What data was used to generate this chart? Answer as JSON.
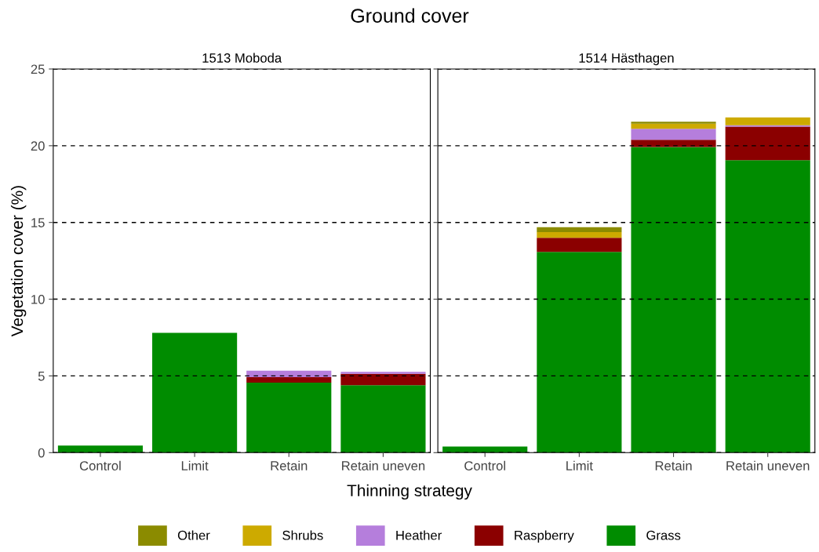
{
  "chart_data": [
    {
      "type": "bar",
      "title": "1513 Moboda",
      "annotations": [
        "Ground cover"
      ],
      "xlabel": "Thinning strategy",
      "ylabel": "Vegetation cover (%)",
      "stacked": true,
      "grid": "y",
      "categories": [
        "Control",
        "Limit",
        "Retain",
        "Retain uneven"
      ],
      "ylim": [
        0,
        25
      ],
      "yticks": [
        0,
        5,
        10,
        15,
        20,
        25
      ],
      "series": [
        {
          "color": "#008c00",
          "values": [
            0.46,
            7.8,
            4.56,
            4.4
          ]
        },
        {
          "color": "#8b0000",
          "values": [
            0,
            0,
            0.36,
            0.74
          ]
        },
        {
          "color": "#b57edc",
          "values": [
            0,
            0,
            0.42,
            0.13
          ]
        },
        {
          "color": "#cdaa00",
          "values": [
            0,
            0,
            0,
            0
          ]
        },
        {
          "color": "#8b8b00",
          "values": [
            0,
            0,
            0,
            0
          ]
        }
      ]
    },
    {
      "type": "bar",
      "title": "1514 Hästhagen",
      "stacked": true,
      "grid": "y",
      "tick_labels": "x",
      "legend": "bottom",
      "categories": [
        "Control",
        "Limit",
        "Retain",
        "Retain uneven"
      ],
      "ylim": [
        0,
        25
      ],
      "yticks": [
        0,
        5,
        10,
        15,
        20,
        25
      ],
      "series": [
        {
          "name": "Grass",
          "color": "#008c00",
          "values": [
            0.4,
            13.08,
            19.91,
            19.06
          ]
        },
        {
          "name": "Raspberry",
          "color": "#8b0000",
          "values": [
            0,
            0.92,
            0.48,
            2.18
          ]
        },
        {
          "name": "Heather",
          "color": "#b57edc",
          "values": [
            0,
            0,
            0.72,
            0.09
          ]
        },
        {
          "name": "Shrubs",
          "color": "#cdaa00",
          "values": [
            0,
            0.37,
            0.33,
            0.51
          ]
        },
        {
          "name": "Other",
          "color": "#8b8b00",
          "values": [
            0,
            0.32,
            0.12,
            0
          ]
        }
      ]
    }
  ]
}
